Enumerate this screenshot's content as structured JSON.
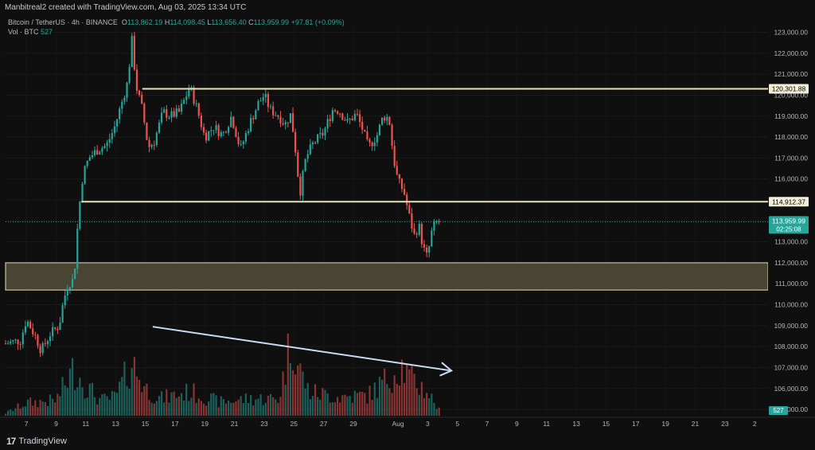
{
  "header": {
    "author_line": "Manbitreal2 created with TradingView.com, Aug 03, 2025 13:34 UTC"
  },
  "symbol_info": {
    "symbol": "Bitcoin / TetherUS · 4h · BINANCE",
    "o_label": "O",
    "o": "113,862.19",
    "h_label": "H",
    "h": "114,098.45",
    "l_label": "L",
    "l": "113,656.40",
    "c_label": "C",
    "c": "113,959.99",
    "change": "+97.81 (+0.09%)"
  },
  "volume_info": {
    "label": "Vol · BTC",
    "value": "527"
  },
  "footer": {
    "brand": "TradingView"
  },
  "colors": {
    "up": "#26a69a",
    "down": "#ef5350",
    "level_line": "#e8e2b8",
    "zone_fill": "#4a4433",
    "trend_arrow": "#c9dcf5",
    "price_tag": "#26a69a"
  },
  "chart_data": {
    "type": "candlestick",
    "y_axis_ticks": [
      "123,000.00",
      "122,000.00",
      "121,000.00",
      "120,000.00",
      "119,000.00",
      "118,000.00",
      "117,000.00",
      "116,000.00",
      "115,000.00",
      "114,000.00",
      "113,000.00",
      "112,000.00",
      "111,000.00",
      "110,000.00",
      "109,000.00",
      "108,000.00",
      "107,000.00",
      "106,000.00",
      "105,000.00"
    ],
    "y_tick_values": [
      123000,
      122000,
      121000,
      120000,
      119000,
      118000,
      117000,
      116000,
      115000,
      114000,
      113000,
      112000,
      111000,
      110000,
      109000,
      108000,
      107000,
      106000,
      105000
    ],
    "ylim": [
      104700,
      123400
    ],
    "x_axis_ticks": [
      "7",
      "9",
      "11",
      "13",
      "15",
      "17",
      "19",
      "21",
      "23",
      "25",
      "27",
      "29",
      "Aug",
      "3",
      "5",
      "7",
      "9",
      "11",
      "13",
      "15",
      "17",
      "19",
      "21",
      "23",
      "2"
    ],
    "x_tick_days": [
      7,
      9,
      11,
      13,
      15,
      17,
      19,
      21,
      23,
      25,
      27,
      29,
      32,
      34,
      36,
      38,
      40,
      42,
      44,
      46,
      48,
      50,
      52,
      54,
      56
    ],
    "x_range_days": [
      5.6,
      56.9
    ],
    "levels": [
      {
        "label": "120,301.88",
        "value": 120301.88,
        "start_day": 14.8
      },
      {
        "label": "114,912.37",
        "value": 114912.37,
        "start_day": 10.7
      }
    ],
    "zone": {
      "top": 112000,
      "bottom": 110700,
      "start_day": 5.6
    },
    "current_price": {
      "label": "113,959.99",
      "value": 113959.99,
      "countdown": "02:25:08"
    },
    "volume_last_label": "527",
    "trend_arrow": {
      "start": [
        15.5,
        108950
      ],
      "end": [
        35.6,
        106850
      ]
    },
    "candle_keypoints": [
      [
        5.6,
        108150
      ],
      [
        6.6,
        108300
      ],
      [
        7.0,
        109300
      ],
      [
        7.6,
        108500
      ],
      [
        8.0,
        107800
      ],
      [
        8.6,
        108600
      ],
      [
        9.2,
        109000
      ],
      [
        9.5,
        110200
      ],
      [
        9.8,
        111000
      ],
      [
        10.2,
        111200
      ],
      [
        10.5,
        114300
      ],
      [
        10.8,
        116200
      ],
      [
        11.2,
        117000
      ],
      [
        11.8,
        117400
      ],
      [
        12.4,
        117600
      ],
      [
        12.9,
        118400
      ],
      [
        13.4,
        119600
      ],
      [
        13.8,
        120600
      ],
      [
        14.1,
        122600
      ],
      [
        14.4,
        120400
      ],
      [
        14.8,
        119300
      ],
      [
        15.2,
        117500
      ],
      [
        15.6,
        117800
      ],
      [
        16.2,
        119200
      ],
      [
        16.7,
        119000
      ],
      [
        17.3,
        119200
      ],
      [
        18.0,
        120400
      ],
      [
        18.5,
        119300
      ],
      [
        19.0,
        118000
      ],
      [
        19.6,
        118500
      ],
      [
        20.2,
        118100
      ],
      [
        20.8,
        119000
      ],
      [
        21.4,
        117400
      ],
      [
        22.0,
        118600
      ],
      [
        22.6,
        119600
      ],
      [
        23.0,
        120000
      ],
      [
        23.4,
        119300
      ],
      [
        24.0,
        119000
      ],
      [
        24.4,
        118600
      ],
      [
        24.8,
        119100
      ],
      [
        25.1,
        117400
      ],
      [
        25.4,
        115300
      ],
      [
        25.8,
        117000
      ],
      [
        26.3,
        117700
      ],
      [
        27.0,
        118200
      ],
      [
        27.6,
        119300
      ],
      [
        28.0,
        119300
      ],
      [
        28.6,
        118700
      ],
      [
        29.2,
        119100
      ],
      [
        29.6,
        118400
      ],
      [
        30.0,
        117500
      ],
      [
        30.6,
        118100
      ],
      [
        31.0,
        119000
      ],
      [
        31.4,
        118900
      ],
      [
        31.7,
        117000
      ],
      [
        32.0,
        115900
      ],
      [
        32.4,
        115400
      ],
      [
        32.8,
        114100
      ],
      [
        33.1,
        113300
      ],
      [
        33.4,
        113800
      ],
      [
        33.7,
        112700
      ],
      [
        34.0,
        112200
      ],
      [
        34.2,
        113300
      ],
      [
        34.5,
        113900
      ],
      [
        34.8,
        113960
      ]
    ],
    "volume_keypoints": [
      [
        5.6,
        0.03
      ],
      [
        7.0,
        0.15
      ],
      [
        9.0,
        0.18
      ],
      [
        10.2,
        0.55
      ],
      [
        11.0,
        0.35
      ],
      [
        12.0,
        0.18
      ],
      [
        13.0,
        0.22
      ],
      [
        14.1,
        0.62
      ],
      [
        15.0,
        0.32
      ],
      [
        16.0,
        0.2
      ],
      [
        18.0,
        0.28
      ],
      [
        20.0,
        0.16
      ],
      [
        22.0,
        0.2
      ],
      [
        24.0,
        0.2
      ],
      [
        24.9,
        0.98
      ],
      [
        25.2,
        0.62
      ],
      [
        26.0,
        0.28
      ],
      [
        28.0,
        0.22
      ],
      [
        30.0,
        0.24
      ],
      [
        31.4,
        0.45
      ],
      [
        32.2,
        0.6
      ],
      [
        32.8,
        0.44
      ],
      [
        34.0,
        0.28
      ],
      [
        34.8,
        0.06
      ]
    ]
  }
}
